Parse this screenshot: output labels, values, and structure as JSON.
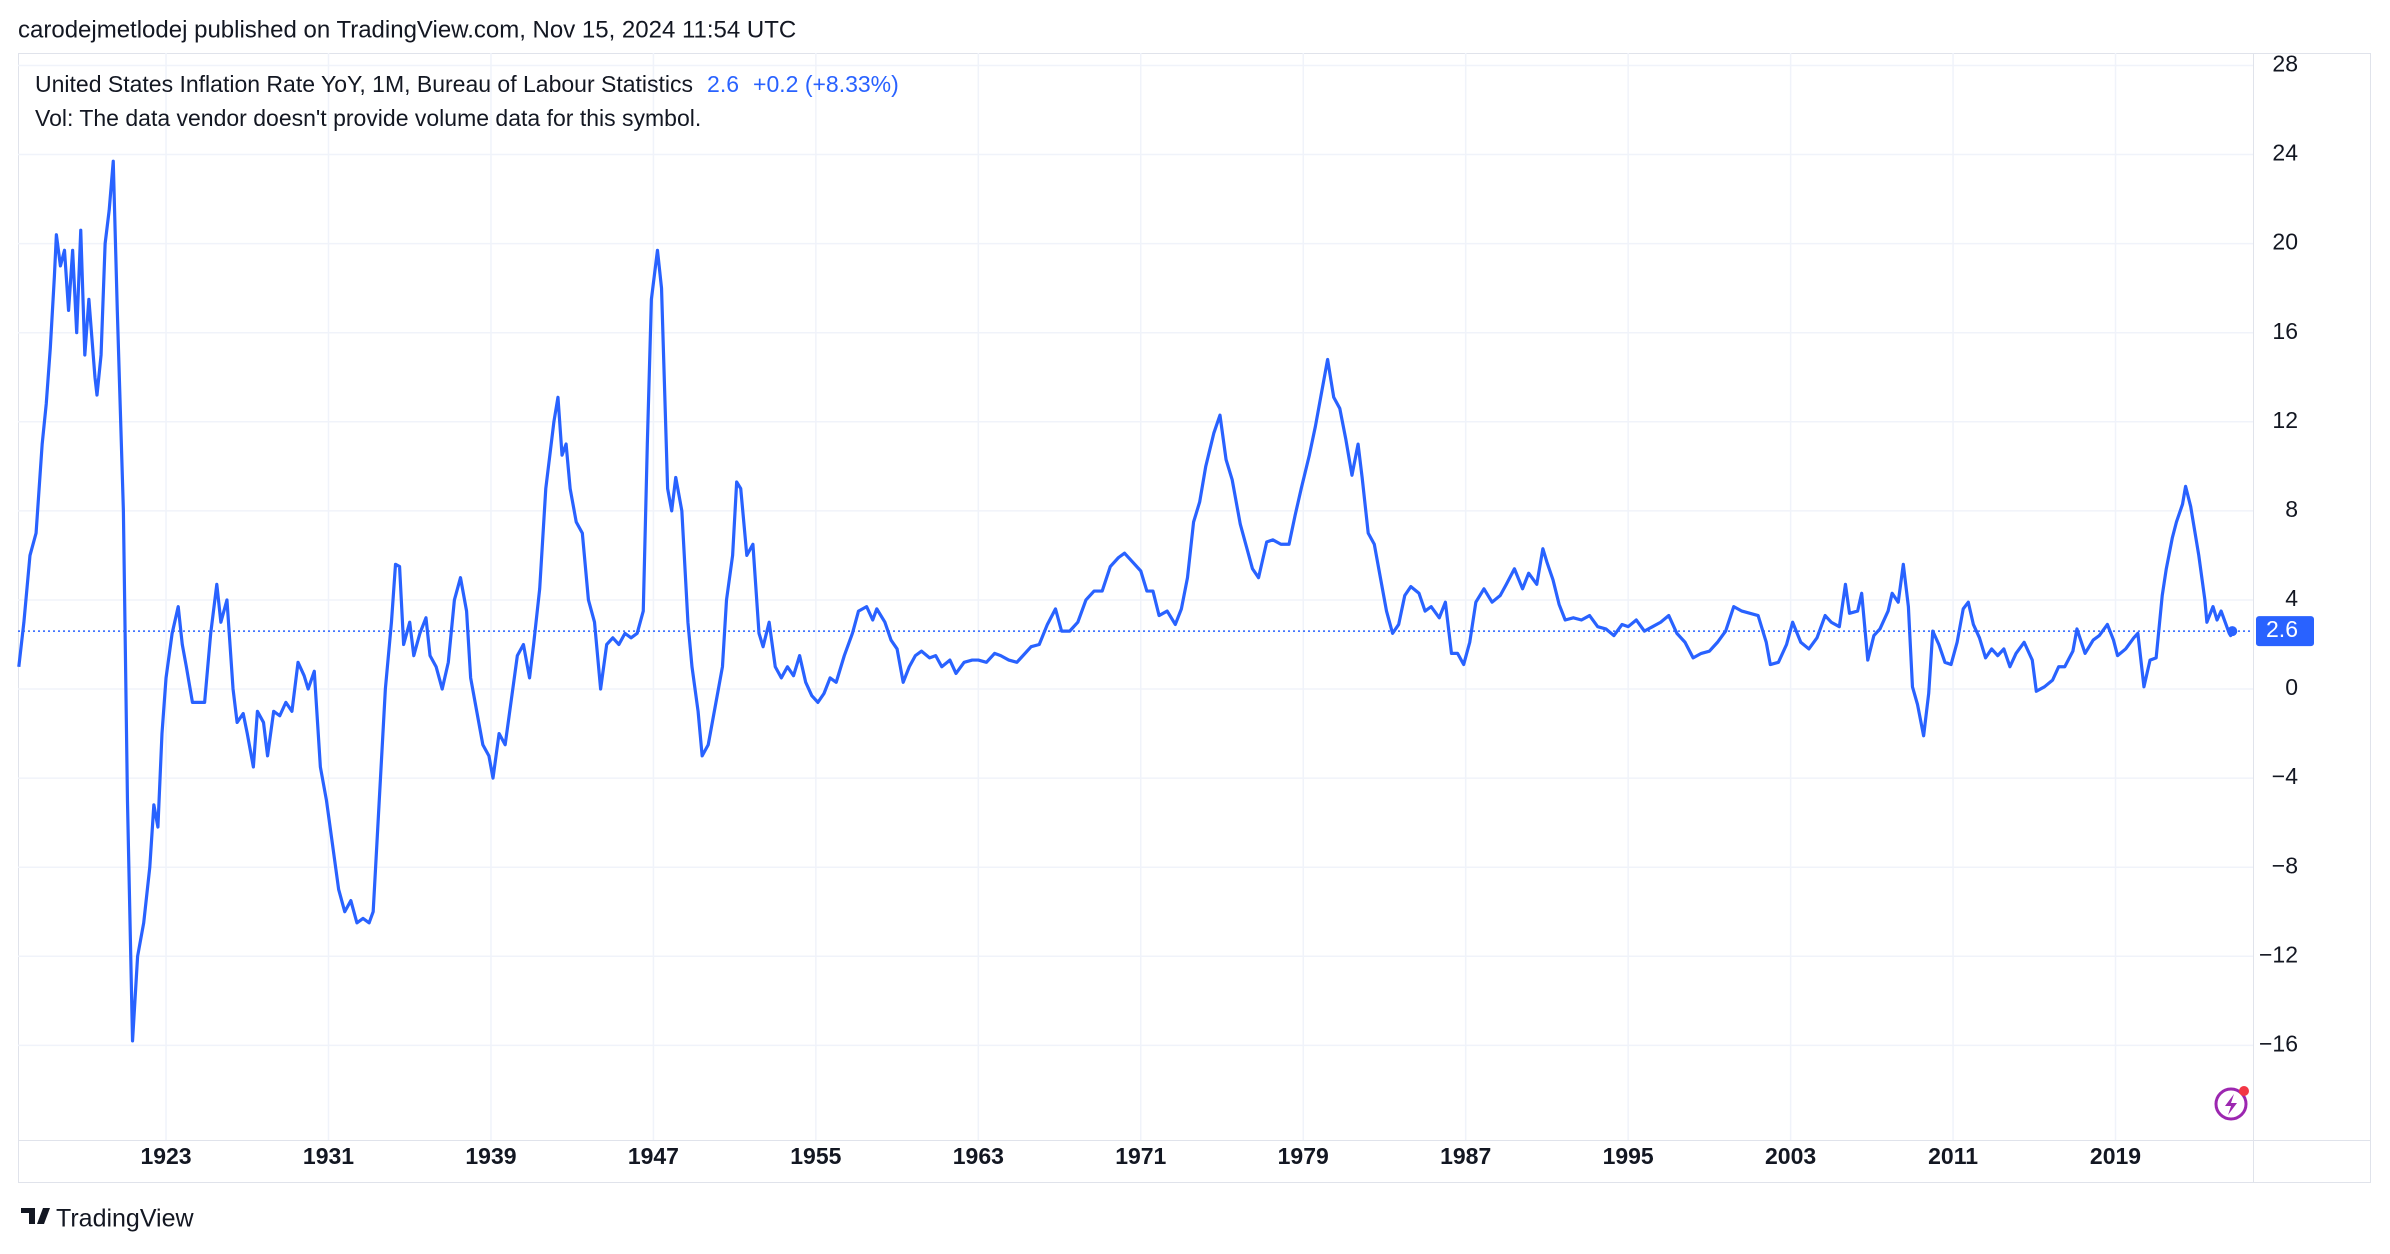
{
  "chart_data": {
    "type": "line",
    "credit": "carodejmetlodej published on TradingView.com, Nov 15, 2024 11:54 UTC",
    "title": "United States Inflation Rate YoY, 1M, Bureau of Labour Statistics",
    "change": "+0.2 (+8.33%)",
    "subtitle": "Vol: The data vendor doesn't provide volume data for this symbol.",
    "brand": "TradingView",
    "xlim": [
      1915.71,
      2025.77
    ],
    "xticks": [
      1923,
      1931,
      1939,
      1947,
      1955,
      1963,
      1971,
      1979,
      1987,
      1995,
      2003,
      2011,
      2019
    ],
    "ylim": [
      -20.25,
      28.56
    ],
    "yticks": [
      28,
      24,
      20,
      16,
      12,
      8,
      4,
      0,
      {
        "value": -4,
        "label": "−4"
      },
      {
        "value": -8,
        "label": "−8"
      },
      {
        "value": -12,
        "label": "−12"
      },
      {
        "value": -16,
        "label": "−16"
      }
    ],
    "grid": true,
    "x": [
      1915.75,
      1916.0,
      1916.3,
      1916.6,
      1916.9,
      1917.1,
      1917.3,
      1917.5,
      1917.6,
      1917.8,
      1918.0,
      1918.2,
      1918.4,
      1918.6,
      1918.8,
      1919.0,
      1919.2,
      1919.5,
      1919.6,
      1919.8,
      1920.0,
      1920.2,
      1920.4,
      1920.6,
      1920.9,
      1921.1,
      1921.35,
      1921.6,
      1921.9,
      1922.2,
      1922.4,
      1922.6,
      1922.8,
      1923.0,
      1923.3,
      1923.6,
      1923.8,
      1924.0,
      1924.3,
      1924.6,
      1924.9,
      1925.2,
      1925.5,
      1925.7,
      1926.0,
      1926.3,
      1926.5,
      1926.8,
      1927.0,
      1927.3,
      1927.5,
      1927.8,
      1928.0,
      1928.3,
      1928.6,
      1928.9,
      1929.2,
      1929.5,
      1929.8,
      1930.0,
      1930.3,
      1930.6,
      1930.9,
      1931.2,
      1931.5,
      1931.8,
      1932.1,
      1932.4,
      1932.7,
      1933.0,
      1933.2,
      1933.5,
      1933.8,
      1934.1,
      1934.3,
      1934.5,
      1934.7,
      1935.0,
      1935.2,
      1935.5,
      1935.8,
      1936.0,
      1936.3,
      1936.6,
      1936.9,
      1937.2,
      1937.5,
      1937.8,
      1938.0,
      1938.3,
      1938.6,
      1938.9,
      1939.1,
      1939.4,
      1939.7,
      1940.0,
      1940.3,
      1940.6,
      1940.9,
      1941.1,
      1941.4,
      1941.7,
      1941.9,
      1942.1,
      1942.3,
      1942.5,
      1942.7,
      1942.9,
      1943.2,
      1943.5,
      1943.8,
      1944.1,
      1944.4,
      1944.7,
      1945.0,
      1945.3,
      1945.6,
      1945.9,
      1946.2,
      1946.5,
      1946.7,
      1946.9,
      1947.2,
      1947.4,
      1947.7,
      1947.9,
      1948.1,
      1948.4,
      1948.7,
      1948.9,
      1949.2,
      1949.4,
      1949.7,
      1949.9,
      1950.2,
      1950.4,
      1950.6,
      1950.9,
      1951.1,
      1951.3,
      1951.6,
      1951.9,
      1952.2,
      1952.4,
      1952.7,
      1953.0,
      1953.3,
      1953.6,
      1953.9,
      1954.2,
      1954.5,
      1954.8,
      1955.1,
      1955.4,
      1955.7,
      1956.0,
      1956.4,
      1956.8,
      1957.1,
      1957.5,
      1957.8,
      1958.0,
      1958.4,
      1958.7,
      1959.0,
      1959.3,
      1959.6,
      1959.9,
      1960.2,
      1960.6,
      1960.9,
      1961.2,
      1961.6,
      1961.9,
      1962.3,
      1962.7,
      1963.0,
      1963.4,
      1963.8,
      1964.1,
      1964.5,
      1964.9,
      1965.2,
      1965.6,
      1966.0,
      1966.4,
      1966.8,
      1967.1,
      1967.5,
      1967.9,
      1968.3,
      1968.7,
      1969.1,
      1969.5,
      1969.9,
      1970.2,
      1970.6,
      1971.0,
      1971.3,
      1971.6,
      1971.9,
      1972.3,
      1972.7,
      1973.0,
      1973.3,
      1973.6,
      1973.9,
      1974.2,
      1974.6,
      1974.9,
      1975.2,
      1975.5,
      1975.9,
      1976.2,
      1976.5,
      1976.8,
      1977.2,
      1977.5,
      1977.9,
      1978.3,
      1978.6,
      1978.9,
      1979.3,
      1979.6,
      1979.9,
      1980.2,
      1980.5,
      1980.8,
      1981.1,
      1981.4,
      1981.7,
      1981.9,
      1982.2,
      1982.5,
      1982.8,
      1983.1,
      1983.4,
      1983.7,
      1984.0,
      1984.3,
      1984.7,
      1985.0,
      1985.3,
      1985.7,
      1986.0,
      1986.3,
      1986.6,
      1986.9,
      1987.2,
      1987.5,
      1987.9,
      1988.3,
      1988.7,
      1989.0,
      1989.4,
      1989.8,
      1990.1,
      1990.5,
      1990.8,
      1991.0,
      1991.3,
      1991.6,
      1991.9,
      1992.3,
      1992.7,
      1993.1,
      1993.5,
      1993.9,
      1994.3,
      1994.7,
      1995.0,
      1995.4,
      1995.8,
      1996.2,
      1996.6,
      1997.0,
      1997.4,
      1997.8,
      1998.2,
      1998.6,
      1999.0,
      1999.4,
      1999.8,
      2000.2,
      2000.6,
      2001.0,
      2001.4,
      2001.8,
      2002.0,
      2002.4,
      2002.8,
      2003.1,
      2003.5,
      2003.9,
      2004.3,
      2004.7,
      2005.0,
      2005.4,
      2005.7,
      2005.9,
      2006.3,
      2006.5,
      2006.8,
      2007.1,
      2007.4,
      2007.8,
      2008.0,
      2008.3,
      2008.55,
      2008.8,
      2009.0,
      2009.25,
      2009.55,
      2009.8,
      2010.0,
      2010.3,
      2010.6,
      2010.9,
      2011.2,
      2011.5,
      2011.75,
      2012.0,
      2012.3,
      2012.6,
      2012.9,
      2013.2,
      2013.5,
      2013.8,
      2014.1,
      2014.5,
      2014.9,
      2015.1,
      2015.5,
      2015.9,
      2016.2,
      2016.5,
      2016.9,
      2017.1,
      2017.5,
      2017.9,
      2018.2,
      2018.6,
      2018.9,
      2019.1,
      2019.5,
      2019.9,
      2020.1,
      2020.4,
      2020.7,
      2021.0,
      2021.3,
      2021.5,
      2021.8,
      2022.0,
      2022.3,
      2022.45,
      2022.7,
      2022.9,
      2023.1,
      2023.4,
      2023.5,
      2023.8,
      2024.0,
      2024.2,
      2024.4,
      2024.6,
      2024.67,
      2024.75
    ],
    "series": [
      {
        "color": "#2962ff",
        "values": [
          1.0,
          3.0,
          6.0,
          7.0,
          11.0,
          12.8,
          15.3,
          18.5,
          20.4,
          19.0,
          19.7,
          17.0,
          19.7,
          16.0,
          20.6,
          15.0,
          17.5,
          14.0,
          13.2,
          15.0,
          20.0,
          21.5,
          23.7,
          17.0,
          8.0,
          -5.0,
          -15.8,
          -12.0,
          -10.5,
          -8.0,
          -5.2,
          -6.2,
          -2.0,
          0.5,
          2.5,
          3.7,
          2.0,
          1.0,
          -0.6,
          -0.6,
          -0.6,
          2.5,
          4.7,
          3.0,
          4.0,
          0.0,
          -1.5,
          -1.1,
          -2.0,
          -3.5,
          -1.0,
          -1.5,
          -3.0,
          -1.0,
          -1.2,
          -0.6,
          -1.0,
          1.2,
          0.6,
          0.0,
          0.8,
          -3.5,
          -5.0,
          -7.0,
          -9.0,
          -10.0,
          -9.5,
          -10.5,
          -10.3,
          -10.5,
          -10.0,
          -5.0,
          0.0,
          3.0,
          5.6,
          5.5,
          2.0,
          3.0,
          1.5,
          2.5,
          3.2,
          1.5,
          1.0,
          0.0,
          1.2,
          4.0,
          5.0,
          3.5,
          0.5,
          -1.0,
          -2.5,
          -3.0,
          -4.0,
          -2.0,
          -2.5,
          -0.5,
          1.5,
          2.0,
          0.5,
          2.0,
          4.5,
          9.0,
          10.5,
          12.0,
          13.1,
          10.5,
          11.0,
          9.0,
          7.5,
          7.0,
          4.0,
          3.0,
          0.0,
          2.0,
          2.3,
          2.0,
          2.5,
          2.3,
          2.5,
          3.5,
          11.0,
          17.5,
          19.7,
          18.0,
          9.0,
          8.0,
          9.5,
          8.0,
          3.0,
          1.0,
          -1.0,
          -3.0,
          -2.5,
          -1.5,
          0.0,
          1.0,
          4.0,
          6.0,
          9.3,
          9.0,
          6.0,
          6.5,
          2.5,
          1.9,
          3.0,
          1.0,
          0.5,
          1.0,
          0.6,
          1.5,
          0.3,
          -0.3,
          -0.6,
          -0.2,
          0.5,
          0.3,
          1.5,
          2.5,
          3.5,
          3.7,
          3.1,
          3.6,
          3.0,
          2.2,
          1.8,
          0.3,
          1.0,
          1.5,
          1.7,
          1.4,
          1.5,
          1.0,
          1.3,
          0.7,
          1.2,
          1.3,
          1.3,
          1.2,
          1.6,
          1.5,
          1.3,
          1.2,
          1.5,
          1.9,
          2.0,
          2.9,
          3.6,
          2.6,
          2.6,
          3.0,
          4.0,
          4.4,
          4.4,
          5.5,
          5.9,
          6.1,
          5.7,
          5.3,
          4.4,
          4.4,
          3.3,
          3.5,
          2.9,
          3.6,
          5.0,
          7.5,
          8.4,
          10.0,
          11.5,
          12.3,
          10.3,
          9.4,
          7.4,
          6.4,
          5.4,
          5.0,
          6.6,
          6.7,
          6.5,
          6.5,
          7.8,
          9.0,
          10.5,
          11.8,
          13.3,
          14.8,
          13.1,
          12.6,
          11.2,
          9.6,
          11.0,
          9.5,
          7.0,
          6.5,
          5.0,
          3.5,
          2.5,
          2.9,
          4.2,
          4.6,
          4.3,
          3.5,
          3.7,
          3.2,
          3.9,
          1.6,
          1.6,
          1.1,
          2.1,
          3.9,
          4.5,
          3.9,
          4.2,
          4.7,
          5.4,
          4.5,
          5.2,
          4.7,
          6.3,
          5.7,
          4.9,
          3.8,
          3.1,
          3.2,
          3.1,
          3.3,
          2.8,
          2.7,
          2.4,
          2.9,
          2.8,
          3.1,
          2.6,
          2.8,
          3.0,
          3.3,
          2.5,
          2.1,
          1.4,
          1.6,
          1.7,
          2.1,
          2.6,
          3.7,
          3.5,
          3.4,
          3.3,
          2.1,
          1.1,
          1.2,
          2.0,
          3.0,
          2.1,
          1.8,
          2.3,
          3.3,
          3.0,
          2.8,
          4.7,
          3.4,
          3.5,
          4.3,
          1.3,
          2.4,
          2.7,
          3.5,
          4.3,
          3.9,
          5.6,
          3.7,
          0.1,
          -0.7,
          -2.1,
          -0.2,
          2.6,
          2.0,
          1.2,
          1.1,
          2.1,
          3.6,
          3.9,
          2.9,
          2.3,
          1.4,
          1.8,
          1.5,
          1.8,
          1.0,
          1.6,
          2.1,
          1.3,
          -0.1,
          0.1,
          0.4,
          1.0,
          1.0,
          1.7,
          2.7,
          1.6,
          2.2,
          2.4,
          2.9,
          2.2,
          1.5,
          1.8,
          2.3,
          2.5,
          0.1,
          1.3,
          1.4,
          4.2,
          5.4,
          6.8,
          7.5,
          8.3,
          9.1,
          8.2,
          7.1,
          6.0,
          4.0,
          3.0,
          3.7,
          3.1,
          3.5,
          3.0,
          2.5,
          2.4,
          2.6
        ]
      }
    ]
  }
}
